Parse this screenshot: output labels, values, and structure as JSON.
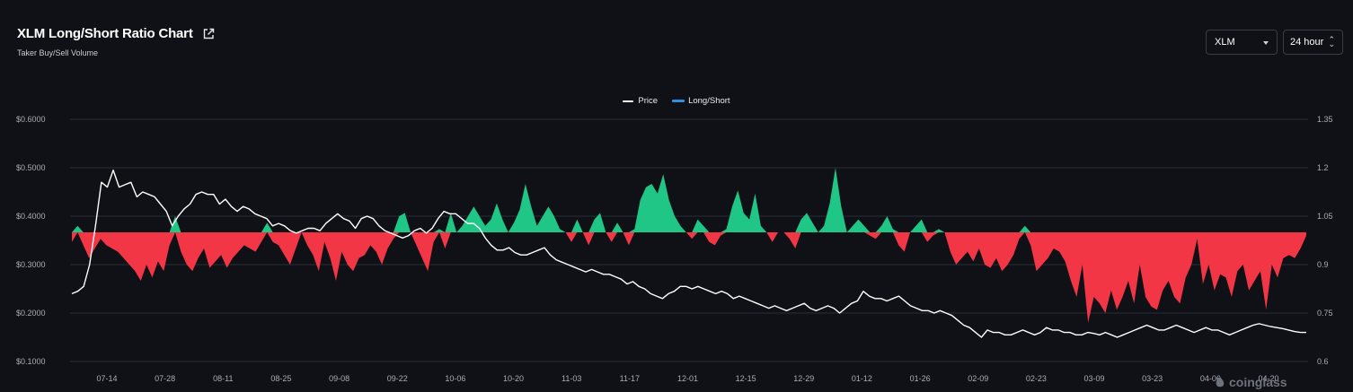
{
  "header": {
    "title": "XLM Long/Short Ratio Chart",
    "subtitle": "Taker Buy/Sell Volume",
    "link_icon": "external-link-icon"
  },
  "controls": {
    "coin_value": "XLM",
    "coin_icon": "chevron-down-icon",
    "range_value": "24 hour",
    "range_icon": "up-down-chevron-icon"
  },
  "watermark": {
    "text": "coinglass",
    "icon": "coinglass-logo-icon"
  },
  "colors": {
    "background": "#0f1116",
    "price_line": "#ffffff",
    "long_fill": "#1fc685",
    "short_fill": "#f23645",
    "legend_ratio": "#2f8fe0",
    "grid": "#2a2d35",
    "axis_text": "#a9adb6"
  },
  "chart_data": {
    "type": "line",
    "legend": [
      "Price",
      "Long/Short"
    ],
    "legend_placement": "top-center",
    "grid": true,
    "baseline_ratio": 1.0,
    "x_ticks": [
      "07-14",
      "07-28",
      "08-11",
      "08-25",
      "09-08",
      "09-22",
      "10-06",
      "10-20",
      "11-03",
      "11-17",
      "12-01",
      "12-15",
      "12-29",
      "01-12",
      "01-26",
      "02-09",
      "02-23",
      "03-09",
      "03-23",
      "04-06",
      "04-20"
    ],
    "y_left": {
      "ticks": [
        "$0.6000",
        "$0.5000",
        "$0.4000",
        "$0.3000",
        "$0.2000",
        "$0.1000"
      ],
      "range": [
        0.1,
        0.6
      ]
    },
    "y_right": {
      "ticks": [
        "1.35",
        "1.2",
        "1.05",
        "0.9",
        "0.75",
        "0.6"
      ],
      "range": [
        0.6,
        1.35
      ]
    },
    "series": [
      {
        "name": "Price",
        "axis": "left",
        "values": [
          0.24,
          0.245,
          0.255,
          0.3,
          0.38,
          0.47,
          0.46,
          0.495,
          0.46,
          0.465,
          0.47,
          0.44,
          0.45,
          0.445,
          0.44,
          0.425,
          0.41,
          0.38,
          0.4,
          0.415,
          0.425,
          0.445,
          0.45,
          0.445,
          0.445,
          0.425,
          0.435,
          0.42,
          0.41,
          0.42,
          0.415,
          0.405,
          0.4,
          0.395,
          0.38,
          0.385,
          0.38,
          0.37,
          0.365,
          0.37,
          0.375,
          0.375,
          0.37,
          0.385,
          0.395,
          0.405,
          0.395,
          0.39,
          0.375,
          0.395,
          0.4,
          0.395,
          0.38,
          0.37,
          0.365,
          0.36,
          0.355,
          0.36,
          0.37,
          0.375,
          0.365,
          0.375,
          0.395,
          0.41,
          0.405,
          0.405,
          0.395,
          0.385,
          0.385,
          0.375,
          0.355,
          0.34,
          0.33,
          0.33,
          0.335,
          0.325,
          0.32,
          0.32,
          0.325,
          0.33,
          0.335,
          0.32,
          0.31,
          0.305,
          0.3,
          0.295,
          0.29,
          0.285,
          0.29,
          0.285,
          0.28,
          0.28,
          0.275,
          0.27,
          0.26,
          0.265,
          0.255,
          0.25,
          0.24,
          0.235,
          0.23,
          0.24,
          0.245,
          0.255,
          0.255,
          0.25,
          0.255,
          0.25,
          0.245,
          0.24,
          0.245,
          0.24,
          0.23,
          0.235,
          0.23,
          0.225,
          0.22,
          0.215,
          0.21,
          0.215,
          0.21,
          0.205,
          0.21,
          0.215,
          0.22,
          0.21,
          0.205,
          0.21,
          0.215,
          0.21,
          0.2,
          0.21,
          0.22,
          0.225,
          0.245,
          0.235,
          0.23,
          0.23,
          0.225,
          0.23,
          0.235,
          0.225,
          0.215,
          0.21,
          0.205,
          0.205,
          0.2,
          0.205,
          0.2,
          0.195,
          0.185,
          0.175,
          0.17,
          0.16,
          0.15,
          0.165,
          0.16,
          0.16,
          0.155,
          0.155,
          0.16,
          0.165,
          0.16,
          0.155,
          0.16,
          0.17,
          0.165,
          0.165,
          0.16,
          0.16,
          0.155,
          0.155,
          0.16,
          0.158,
          0.155,
          0.16,
          0.155,
          0.15,
          0.155,
          0.16,
          0.165,
          0.17,
          0.175,
          0.17,
          0.165,
          0.165,
          0.17,
          0.175,
          0.17,
          0.165,
          0.16,
          0.165,
          0.17,
          0.165,
          0.165,
          0.16,
          0.155,
          0.16,
          0.165,
          0.17,
          0.175,
          0.178,
          0.175,
          0.172,
          0.17,
          0.168,
          0.165,
          0.162,
          0.16,
          0.16
        ]
      },
      {
        "name": "Long/Short",
        "axis": "right",
        "values": [
          0.97,
          1.02,
          0.96,
          0.92,
          0.95,
          0.98,
          0.96,
          0.95,
          0.94,
          0.92,
          0.9,
          0.88,
          0.85,
          0.9,
          0.86,
          0.91,
          0.88,
          0.96,
          1.05,
          0.94,
          0.9,
          0.88,
          0.92,
          0.95,
          0.89,
          0.91,
          0.93,
          0.89,
          0.92,
          0.94,
          0.96,
          0.95,
          0.94,
          0.97,
          1.03,
          0.97,
          0.96,
          0.93,
          0.9,
          0.95,
          1.0,
          0.96,
          0.93,
          0.88,
          0.97,
          0.92,
          0.85,
          0.94,
          0.9,
          0.88,
          0.92,
          0.93,
          0.96,
          0.94,
          0.9,
          0.95,
          0.98,
          1.05,
          1.06,
          1.0,
          0.96,
          0.92,
          0.88,
          0.97,
          1.01,
          0.95,
          1.06,
          1.0,
          1.02,
          1.05,
          1.08,
          1.05,
          1.02,
          1.04,
          1.09,
          1.04,
          1.0,
          1.03,
          1.07,
          1.15,
          1.08,
          1.02,
          1.05,
          1.08,
          1.05,
          1.01,
          1.0,
          0.97,
          1.04,
          1.0,
          0.96,
          1.04,
          1.06,
          1.0,
          0.97,
          1.03,
          1.0,
          0.96,
          1.01,
          1.1,
          1.14,
          1.15,
          1.12,
          1.18,
          1.1,
          1.05,
          1.02,
          1.0,
          0.98,
          1.04,
          1.02,
          0.97,
          0.96,
          0.99,
          1.01,
          1.08,
          1.13,
          1.06,
          1.04,
          1.12,
          1.02,
          1.0,
          0.97,
          1.0,
          1.0,
          0.98,
          0.95,
          1.04,
          1.06,
          1.03,
          1.0,
          1.02,
          1.09,
          1.2,
          1.08,
          1.0,
          1.02,
          1.04,
          1.02,
          0.99,
          0.98,
          1.02,
          1.05,
          1.01,
          0.96,
          0.94,
          1.0,
          1.02,
          1.04,
          0.97,
          0.99,
          1.01,
          1.0,
          0.94,
          0.9,
          0.92,
          0.94,
          0.91,
          0.95,
          0.9,
          0.89,
          0.92,
          0.88,
          0.9,
          0.93,
          0.98,
          1.02,
          0.96,
          0.88,
          0.9,
          0.92,
          0.95,
          0.94,
          0.91,
          0.85,
          0.8,
          0.9,
          0.72,
          0.8,
          0.78,
          0.75,
          0.82,
          0.76,
          0.8,
          0.85,
          0.78,
          0.9,
          0.8,
          0.77,
          0.76,
          0.82,
          0.85,
          0.8,
          0.78,
          0.86,
          0.9,
          0.98,
          0.84,
          0.9,
          0.82,
          0.87,
          0.86,
          0.8,
          0.88,
          0.9,
          0.82,
          0.85,
          0.88,
          0.76,
          0.9,
          0.86,
          0.92,
          0.93,
          0.92,
          0.95,
          0.99
        ]
      }
    ]
  }
}
